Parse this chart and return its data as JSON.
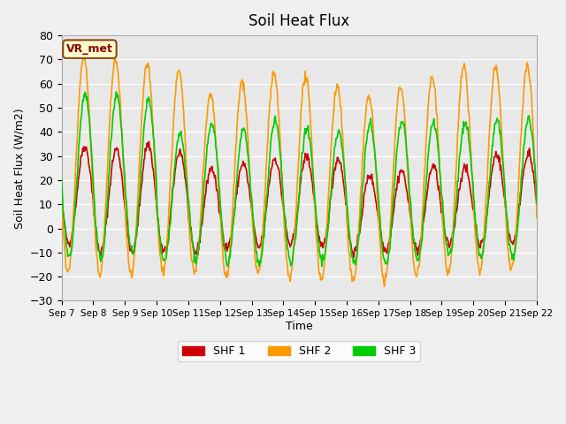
{
  "title": "Soil Heat Flux",
  "xlabel": "Time",
  "ylabel": "Soil Heat Flux (W/m2)",
  "ylim": [
    -30,
    80
  ],
  "yticks": [
    -30,
    -20,
    -10,
    0,
    10,
    20,
    30,
    40,
    50,
    60,
    70,
    80
  ],
  "x_labels": [
    "Sep 7",
    "Sep 8",
    "Sep 9",
    "Sep 10",
    "Sep 11",
    "Sep 12",
    "Sep 13",
    "Sep 14",
    "Sep 15",
    "Sep 16",
    "Sep 17",
    "Sep 18",
    "Sep 19",
    "Sep 20",
    "Sep 21",
    "Sep 22"
  ],
  "shf1_color": "#cc0000",
  "shf2_color": "#ff9900",
  "shf3_color": "#00cc00",
  "legend_labels": [
    "SHF 1",
    "SHF 2",
    "SHF 3"
  ],
  "annotation_text": "VR_met",
  "bg_color": "#e8e8e8",
  "grid_color": "#ffffff",
  "n_days": 15,
  "points_per_day": 48
}
